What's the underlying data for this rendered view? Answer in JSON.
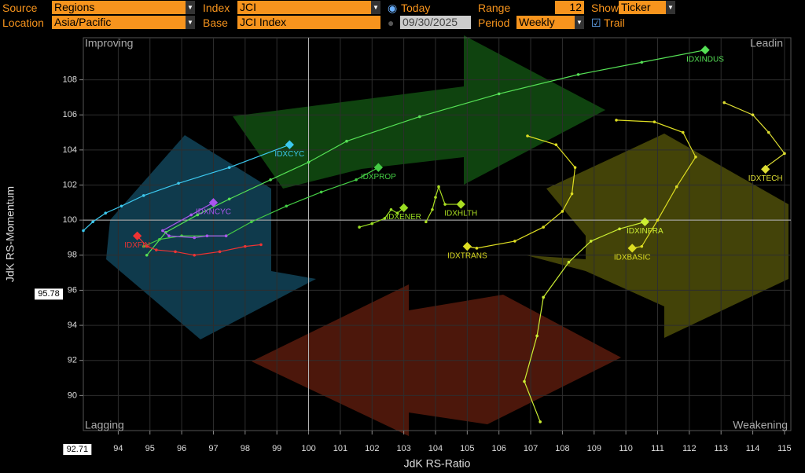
{
  "toolbar": {
    "source_label": "Source",
    "source": "Regions",
    "location_label": "Location",
    "location": "Asia/Pacific",
    "index_label": "Index",
    "index": "JCI",
    "base_label": "Base",
    "base": "JCI Index",
    "today": "Today",
    "date": "09/30/2025",
    "range_label": "Range",
    "range": "12",
    "period_label": "Period",
    "period": "Weekly",
    "show_label": "Show",
    "show": "Ticker",
    "trail": "Trail"
  },
  "chart_data": {
    "type": "scatter",
    "xlabel": "JdK RS-Ratio",
    "ylabel": "JdK RS-Momentum",
    "quadrants": {
      "top_left": "Improving",
      "top_right": "Leadin",
      "bottom_left": "Lagging",
      "bottom_right": "Weakening"
    },
    "xlim": [
      92.9,
      115.2
    ],
    "ylim": [
      88,
      110.4
    ],
    "xticks": [
      94,
      95,
      96,
      97,
      98,
      99,
      100,
      101,
      102,
      103,
      104,
      105,
      106,
      107,
      108,
      109,
      110,
      111,
      112,
      113,
      114,
      115
    ],
    "yticks": [
      90,
      92,
      94,
      96,
      98,
      100,
      102,
      104,
      106,
      108
    ],
    "grid": true,
    "center": [
      100,
      100
    ],
    "x_marker": 92.71,
    "y_marker": 95.78,
    "series": [
      {
        "name": "IDXINDUS",
        "color": "#55e055",
        "x": [
          94.9,
          95.5,
          96.5,
          97.5,
          98.8,
          100,
          101.2,
          103.5,
          106,
          108.5,
          110.5,
          112.5
        ],
        "y": [
          98.0,
          99.3,
          100.3,
          101.2,
          102.3,
          103.3,
          104.5,
          105.9,
          107.2,
          108.3,
          109.0,
          109.7
        ]
      },
      {
        "name": "IDXCYC",
        "color": "#3cc8ee",
        "x": [
          92.9,
          93.2,
          93.6,
          94.1,
          94.8,
          95.9,
          97.5,
          99.4
        ],
        "y": [
          99.4,
          99.9,
          100.4,
          100.8,
          101.4,
          102.1,
          103.0,
          104.3
        ]
      },
      {
        "name": "IDXPROP",
        "color": "#44cc44",
        "x": [
          94.8,
          95.3,
          96,
          97.4,
          98.2,
          99.3,
          100.4,
          101.5,
          102.2
        ],
        "y": [
          98.5,
          98.9,
          99.1,
          99.1,
          99.9,
          100.8,
          101.6,
          102.3,
          103.0
        ]
      },
      {
        "name": "IDXNCYC",
        "color": "#aa55ee",
        "x": [
          97.4,
          96.8,
          96.4,
          95.6,
          95.4,
          96.3,
          97.0
        ],
        "y": [
          99.1,
          99.1,
          99.0,
          99.1,
          99.4,
          100.3,
          101.0
        ]
      },
      {
        "name": "IDXFIN",
        "color": "#ee3333",
        "x": [
          98.5,
          98,
          97.2,
          96.4,
          95.8,
          95.2,
          94.9,
          94.6
        ],
        "y": [
          98.6,
          98.5,
          98.2,
          98.0,
          98.2,
          98.3,
          98.5,
          99.1
        ]
      },
      {
        "name": "IDXENER",
        "color": "#99dd22",
        "x": [
          101.6,
          102,
          102.4,
          102.6,
          102.8,
          103
        ],
        "y": [
          99.6,
          99.8,
          100.1,
          100.6,
          100.4,
          100.7
        ]
      },
      {
        "name": "IDXHLTH",
        "color": "#aadd22",
        "x": [
          103.7,
          103.9,
          104,
          104.1,
          104.3,
          104.8
        ],
        "y": [
          99.9,
          100.6,
          101.3,
          101.9,
          100.9,
          100.9
        ]
      },
      {
        "name": "IDXTRANS",
        "color": "#dddd22",
        "x": [
          106.9,
          107.8,
          108.4,
          108.3,
          108.0,
          107.4,
          106.5,
          105.3,
          105.0
        ],
        "y": [
          104.8,
          104.3,
          103.0,
          101.5,
          100.5,
          99.6,
          98.8,
          98.4,
          98.5
        ]
      },
      {
        "name": "IDXINFRA",
        "color": "#ccee33",
        "x": [
          107.3,
          106.8,
          107.2,
          107.4,
          108.2,
          108.9,
          109.8,
          110.6
        ],
        "y": [
          88.5,
          90.8,
          93.4,
          95.6,
          97.6,
          98.8,
          99.5,
          99.9
        ]
      },
      {
        "name": "IDXTECH",
        "color": "#dddd33",
        "x": [
          113.1,
          114,
          114.5,
          115.0,
          114.4,
          114.4
        ],
        "y": [
          106.7,
          106.0,
          105.0,
          103.8,
          103.0,
          102.9
        ]
      },
      {
        "name": "IDXBASIC",
        "color": "#dddd22",
        "x": [
          109.7,
          110.9,
          111.8,
          112.2,
          111.6,
          111.0,
          110.5,
          110.2
        ],
        "y": [
          105.7,
          105.6,
          105.0,
          103.6,
          101.9,
          100.0,
          98.5,
          98.4
        ]
      }
    ]
  }
}
